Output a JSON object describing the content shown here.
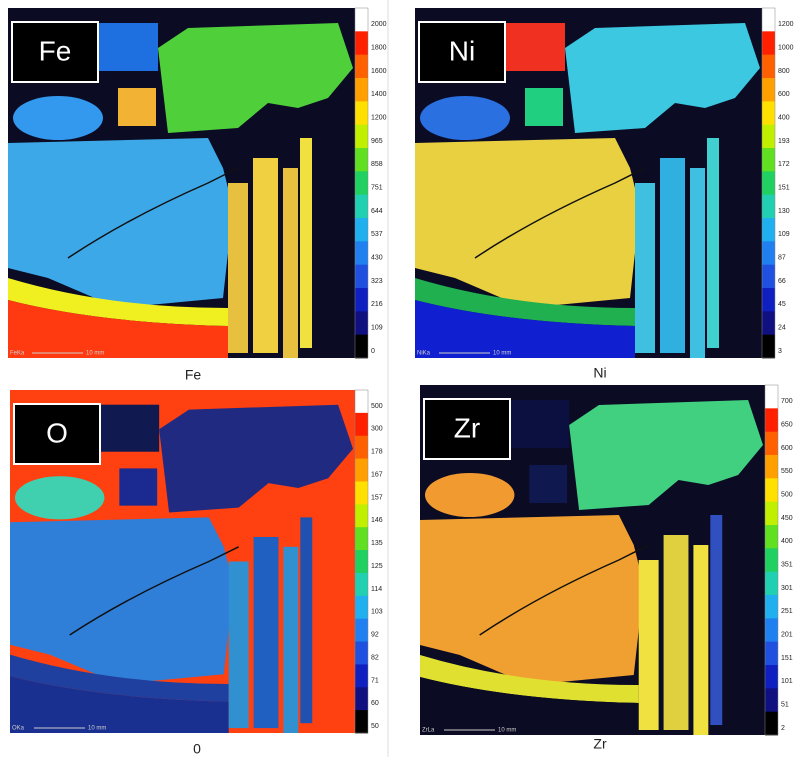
{
  "panels": [
    {
      "label": "Fe",
      "caption": "Fe",
      "signal": "FeKa",
      "scale": "10 mm",
      "colorbar": [
        "2000",
        "1800",
        "1600",
        "1400",
        "1200",
        "965",
        "858",
        "751",
        "644",
        "537",
        "430",
        "323",
        "216",
        "109",
        "0"
      ]
    },
    {
      "label": "Ni",
      "caption": "Ni",
      "signal": "NiKa",
      "scale": "10 mm",
      "colorbar": [
        "1200",
        "1000",
        "800",
        "600",
        "400",
        "193",
        "172",
        "151",
        "130",
        "109",
        "87",
        "66",
        "45",
        "24",
        "3"
      ]
    },
    {
      "label": "O",
      "caption": "0",
      "signal": "OKa",
      "scale": "10 mm",
      "colorbar": [
        "500",
        "300",
        "178",
        "167",
        "157",
        "146",
        "135",
        "125",
        "114",
        "103",
        "92",
        "82",
        "71",
        "60",
        "50"
      ]
    },
    {
      "label": "Zr",
      "caption": "Zr",
      "signal": "ZrLa",
      "scale": "10 mm",
      "colorbar": [
        "700",
        "650",
        "600",
        "550",
        "500",
        "450",
        "400",
        "351",
        "301",
        "251",
        "201",
        "151",
        "101",
        "51",
        "2"
      ]
    }
  ]
}
